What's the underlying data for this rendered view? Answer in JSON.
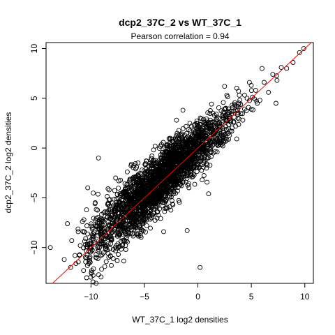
{
  "chart_data": {
    "type": "scatter",
    "title": "dcp2_37C_2 vs WT_37C_1",
    "subtitle": "Pearson correlation =  0.94",
    "xlabel": "WT_37C_1 log2 densities",
    "ylabel": "dcp2_37C_2 log2 densities",
    "xlim": [
      -14.2,
      10.8
    ],
    "ylim": [
      -13.6,
      10.6
    ],
    "x_ticks": [
      -10,
      -5,
      0,
      5,
      10
    ],
    "y_ticks": [
      -10,
      -5,
      0,
      5,
      10
    ],
    "marker": "open-circle",
    "point_color": "#000000",
    "reference_line": {
      "slope": 1,
      "intercept": 0,
      "color": "#ff0000"
    },
    "grid": false,
    "legend": "none",
    "points": [
      [
        -13.8,
        -10.0
      ],
      [
        -11.9,
        -12.0
      ],
      [
        -12.5,
        -11.2
      ],
      [
        -12.2,
        -7.6
      ],
      [
        -11.8,
        -9.3
      ],
      [
        -11.5,
        -10.8
      ],
      [
        -11.0,
        -9.8
      ],
      [
        -11.2,
        -8.4
      ],
      [
        -10.8,
        -7.4
      ],
      [
        -10.5,
        -9.1
      ],
      [
        -10.2,
        -11.6
      ],
      [
        -10.0,
        -10.1
      ],
      [
        -9.8,
        -8.6
      ],
      [
        -9.6,
        -5.5
      ],
      [
        -9.4,
        -7.5
      ],
      [
        -9.5,
        -11.0
      ],
      [
        -9.0,
        -8.3
      ],
      [
        -9.2,
        -9.6
      ],
      [
        -8.8,
        -6.5
      ],
      [
        -8.6,
        -9.9
      ],
      [
        -10.3,
        -4.0
      ],
      [
        -9.3,
        -1.0
      ],
      [
        -8.1,
        -11.8
      ],
      [
        -8.0,
        -7.2
      ],
      [
        -7.6,
        -5.8
      ],
      [
        -7.4,
        -3.3
      ],
      [
        -7.0,
        -6.4
      ],
      [
        -6.8,
        -4.4
      ],
      [
        -6.6,
        -2.4
      ],
      [
        -6.2,
        -5.1
      ],
      [
        -6.0,
        -3.5
      ],
      [
        -5.8,
        -7.8
      ],
      [
        -5.6,
        -1.5
      ],
      [
        -5.2,
        -4.2
      ],
      [
        -5.0,
        -2.9
      ],
      [
        -4.8,
        -5.6
      ],
      [
        -4.4,
        -1.2
      ],
      [
        -4.2,
        -3.6
      ],
      [
        -4.0,
        0.2
      ],
      [
        -3.6,
        -2.1
      ],
      [
        -3.4,
        -4.8
      ],
      [
        -3.0,
        -0.6
      ],
      [
        -2.8,
        -2.6
      ],
      [
        -2.4,
        0.9
      ],
      [
        -2.2,
        -1.4
      ],
      [
        -1.8,
        -3.2
      ],
      [
        -1.6,
        1.3
      ],
      [
        -1.2,
        -0.4
      ],
      [
        -1.0,
        -8.3
      ],
      [
        -0.6,
        0.8
      ],
      [
        -0.4,
        -1.8
      ],
      [
        0.0,
        1.9
      ],
      [
        0.2,
        0.1
      ],
      [
        0.6,
        2.6
      ],
      [
        0.8,
        -1.0
      ],
      [
        1.2,
        1.6
      ],
      [
        1.4,
        3.5
      ],
      [
        1.8,
        0.4
      ],
      [
        2.2,
        2.4
      ],
      [
        2.6,
        4.0
      ],
      [
        3.0,
        1.7
      ],
      [
        3.4,
        3.1
      ],
      [
        3.8,
        4.4
      ],
      [
        4.2,
        2.8
      ],
      [
        4.6,
        5.0
      ],
      [
        5.0,
        3.9
      ],
      [
        5.4,
        5.8
      ],
      [
        5.8,
        4.8
      ],
      [
        6.2,
        6.6
      ],
      [
        6.6,
        5.6
      ],
      [
        7.0,
        7.4
      ],
      [
        7.4,
        6.8
      ],
      [
        7.8,
        8.1
      ],
      [
        8.3,
        8.0
      ],
      [
        8.9,
        8.6
      ],
      [
        9.5,
        9.6
      ],
      [
        9.9,
        10.0
      ],
      [
        6.0,
        8.0
      ],
      [
        7.3,
        4.5
      ],
      [
        2.5,
        6.2
      ],
      [
        -4.6,
        -1.8
      ],
      [
        -5.4,
        -6.2
      ],
      [
        -3.8,
        -5.9
      ],
      [
        -2.6,
        -1.9
      ],
      [
        -6.4,
        -7.0
      ],
      [
        -7.2,
        -9.4
      ],
      [
        -8.4,
        -10.6
      ],
      [
        -9.8,
        -12.8
      ],
      [
        -1.4,
        3.8
      ],
      [
        0.4,
        -3.2
      ],
      [
        0.2,
        -12.0
      ],
      [
        1.0,
        -4.6
      ],
      [
        -2.0,
        2.8
      ],
      [
        -5.6,
        -8.6
      ],
      [
        -3.2,
        -8.4
      ]
    ]
  }
}
